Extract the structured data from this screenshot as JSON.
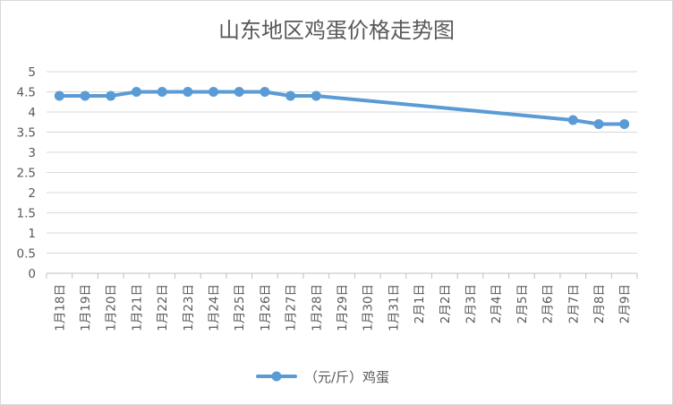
{
  "chart_data": {
    "type": "line",
    "title": "山东地区鸡蛋价格走势图",
    "xlabel": "",
    "ylabel": "",
    "ylim": [
      0,
      5
    ],
    "yticks": [
      "0",
      "0.5",
      "1",
      "1.5",
      "2",
      "2.5",
      "3",
      "3.5",
      "4",
      "4.5",
      "5"
    ],
    "grid": true,
    "legend_position": "bottom",
    "categories": [
      "1月18日",
      "1月19日",
      "1月20日",
      "1月21日",
      "1月22日",
      "1月23日",
      "1月24日",
      "1月25日",
      "1月26日",
      "1月27日",
      "1月28日",
      "1月29日",
      "1月30日",
      "1月31日",
      "2月1日",
      "2月2日",
      "2月3日",
      "2月4日",
      "2月5日",
      "2月6日",
      "2月7日",
      "2月8日",
      "2月9日"
    ],
    "series": [
      {
        "name": "（元/斤）鸡蛋",
        "color": "#5b9bd5",
        "values": [
          4.4,
          4.4,
          4.4,
          4.5,
          4.5,
          4.5,
          4.5,
          4.5,
          4.5,
          4.4,
          4.4,
          null,
          null,
          null,
          null,
          null,
          null,
          null,
          null,
          null,
          3.8,
          3.7,
          3.7
        ]
      }
    ]
  }
}
